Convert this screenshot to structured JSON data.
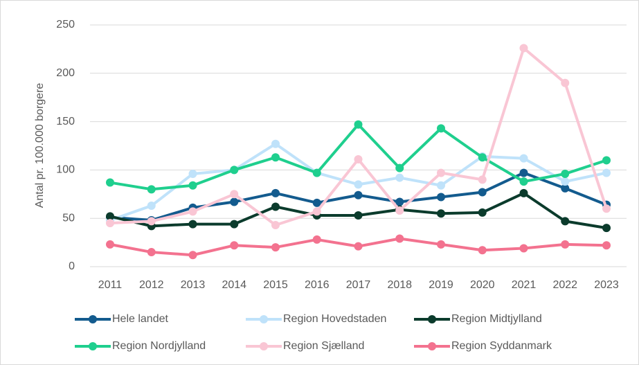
{
  "chart_data": {
    "type": "line",
    "y_label": "Antal pr. 100.000 borgere",
    "x": [
      "2011",
      "2012",
      "2013",
      "2014",
      "2015",
      "2016",
      "2017",
      "2018",
      "2019",
      "2020",
      "2021",
      "2022",
      "2023"
    ],
    "ylim": [
      0,
      250
    ],
    "yticks": [
      0,
      50,
      100,
      150,
      200,
      250
    ],
    "grid": true,
    "legend": "bottom",
    "series": [
      {
        "name": "Hele landet",
        "color": "#135b8e",
        "values": [
          51,
          48,
          61,
          67,
          76,
          66,
          74,
          67,
          72,
          77,
          97,
          81,
          64
        ]
      },
      {
        "name": "Region Hovedstaden",
        "color": "#bfe2fa",
        "values": [
          48,
          63,
          96,
          100,
          127,
          97,
          85,
          92,
          84,
          114,
          112,
          88,
          97
        ]
      },
      {
        "name": "Region Midtjylland",
        "color": "#0b3b2c",
        "values": [
          52,
          42,
          44,
          44,
          62,
          53,
          53,
          59,
          55,
          56,
          76,
          47,
          40
        ]
      },
      {
        "name": "Region Nordjylland",
        "color": "#1fcf8e",
        "values": [
          87,
          80,
          84,
          100,
          113,
          97,
          147,
          102,
          143,
          113,
          88,
          96,
          110
        ]
      },
      {
        "name": "Region Sjælland",
        "color": "#f9c6d4",
        "values": [
          45,
          47,
          57,
          75,
          43,
          57,
          111,
          58,
          97,
          90,
          226,
          190,
          60
        ]
      },
      {
        "name": "Region Syddanmark",
        "color": "#f3728f",
        "values": [
          23,
          15,
          12,
          22,
          20,
          28,
          21,
          29,
          23,
          17,
          19,
          23,
          22
        ]
      }
    ]
  }
}
